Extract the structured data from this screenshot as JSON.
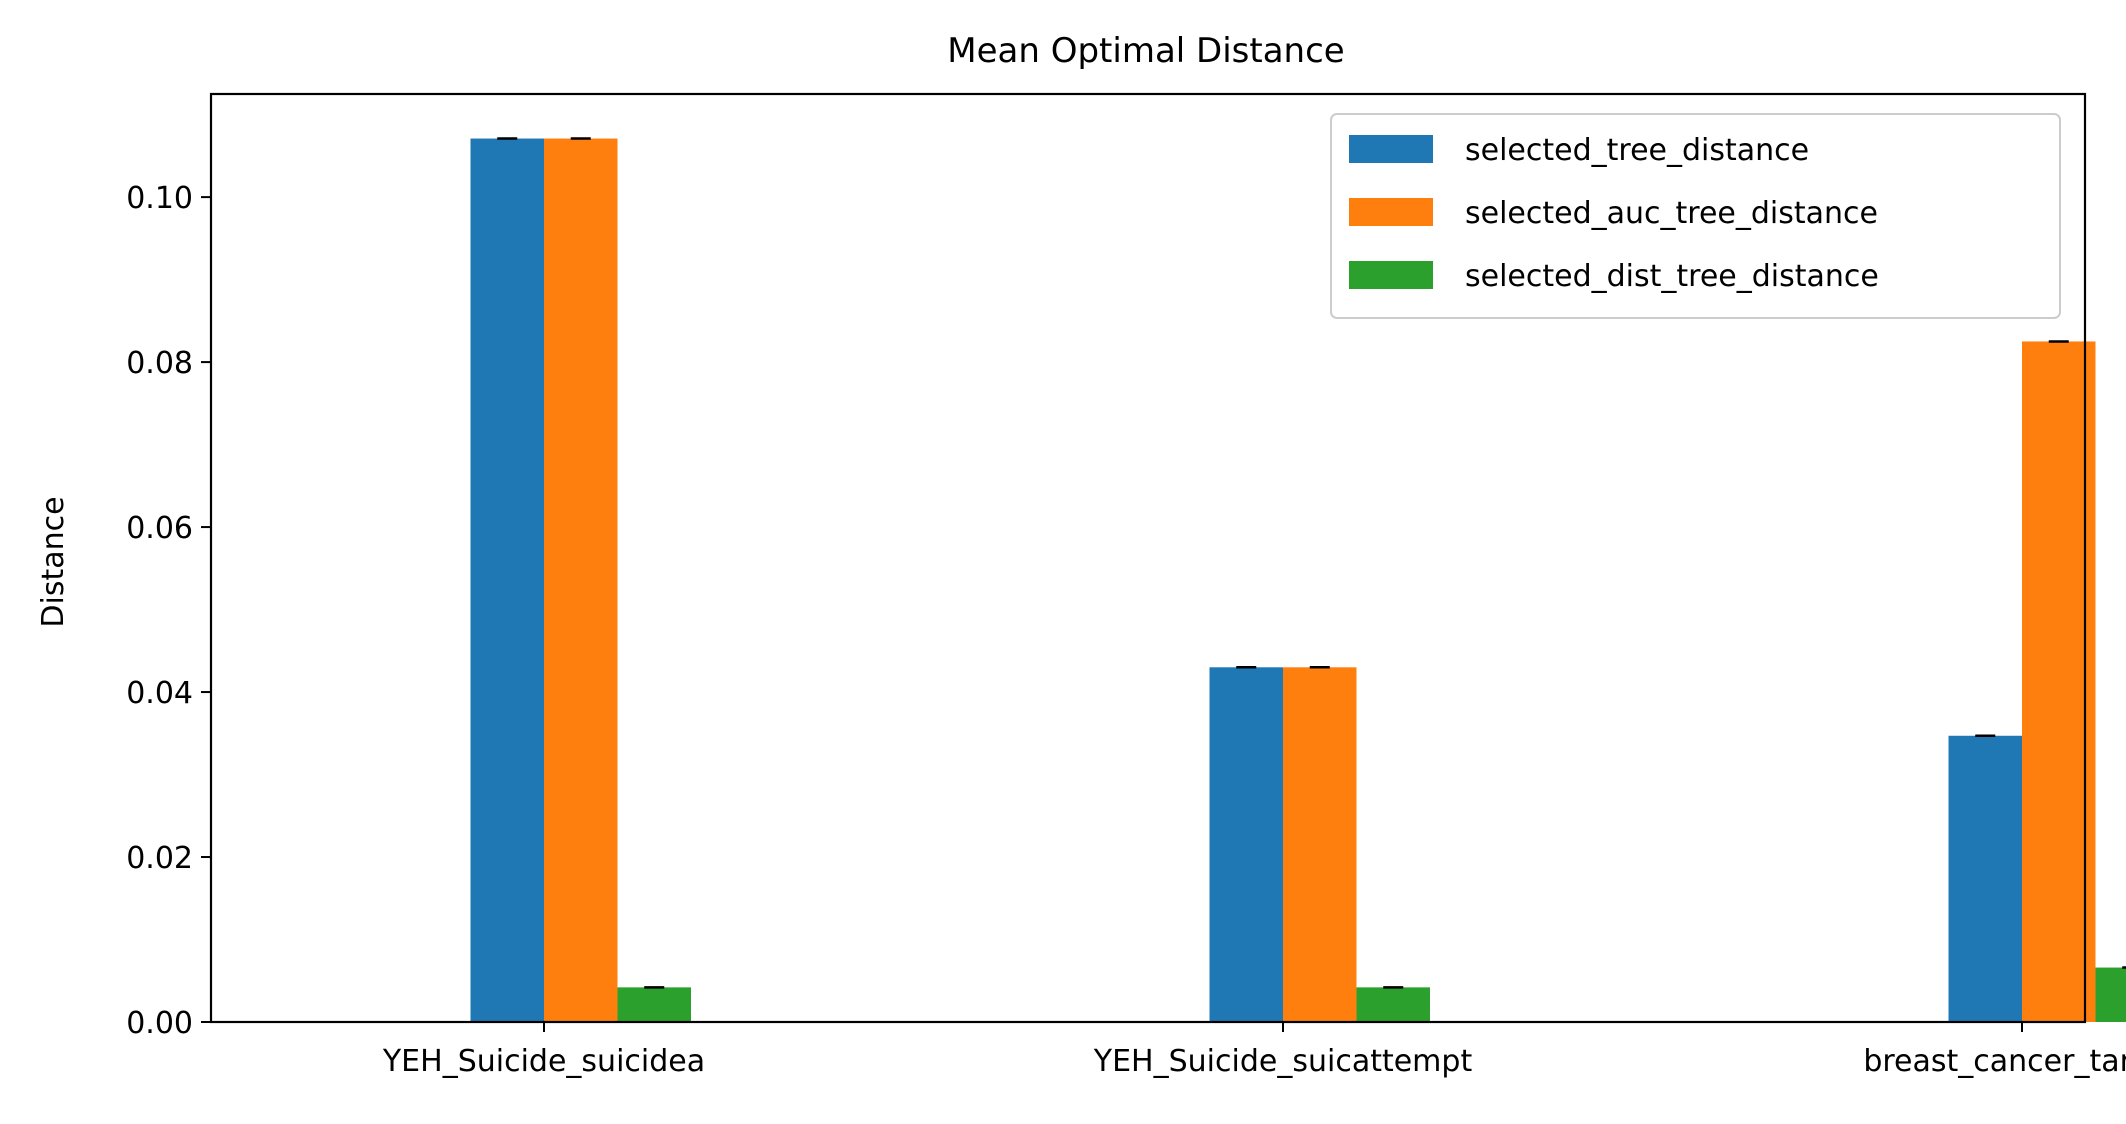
{
  "chart_data": {
    "type": "bar",
    "title": "Mean Optimal Distance",
    "xlabel": "",
    "ylabel": "Distance",
    "categories": [
      "YEH_Suicide_suicidea",
      "YEH_Suicide_suicattempt",
      "breast_cancer_target"
    ],
    "series": [
      {
        "name": "selected_tree_distance",
        "color": "#1f77b4",
        "values": [
          0.1071,
          0.043,
          0.0347
        ]
      },
      {
        "name": "selected_auc_tree_distance",
        "color": "#ff7f0e",
        "values": [
          0.1071,
          0.043,
          0.0825
        ]
      },
      {
        "name": "selected_dist_tree_distance",
        "color": "#2ca02c",
        "values": [
          0.0042,
          0.0042,
          0.0066
        ]
      }
    ],
    "ylim": [
      0,
      0.1125
    ],
    "yticks": [
      0.0,
      0.02,
      0.04,
      0.06,
      0.08,
      0.1
    ],
    "ytick_labels": [
      "0.00",
      "0.02",
      "0.04",
      "0.06",
      "0.08",
      "0.10"
    ],
    "grid": false,
    "legend_position": "top-right",
    "error_bars": true
  }
}
